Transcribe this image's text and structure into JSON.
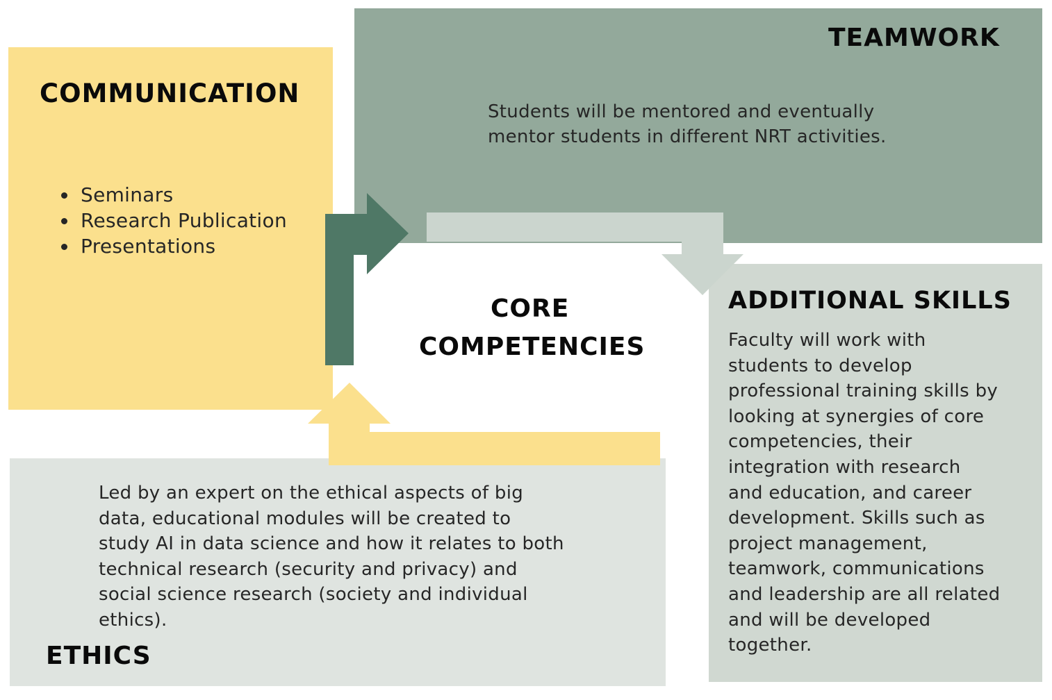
{
  "colors": {
    "communication": "#fbe08d",
    "teamwork": "#93a99b",
    "additional_skills": "#d0d8d1",
    "ethics": "#dfe4e0",
    "arrow_dark": "#4f7866",
    "arrow_light": "#cbd5ce",
    "arrow_yellow": "#fbe08d"
  },
  "center": {
    "line1": "CORE",
    "line2": "COMPETENCIES"
  },
  "communication": {
    "title": "COMMUNICATION",
    "items": [
      "Seminars",
      "Research Publication",
      "Presentations"
    ]
  },
  "teamwork": {
    "title": "TEAMWORK",
    "line1": "Students will be mentored and eventually",
    "line2": "mentor students in different NRT activities."
  },
  "additional_skills": {
    "title": "ADDITIONAL SKILLS",
    "lines": [
      "Faculty will work with",
      "students to develop",
      "professional training skills by",
      "looking at synergies of core",
      "competencies, their",
      "integration with research",
      "and education, and career",
      "development. Skills such as",
      "project management,",
      "teamwork, communications",
      "and leadership are all related",
      "and will be developed",
      "together."
    ]
  },
  "ethics": {
    "title": "ETHICS",
    "lines": [
      "Led by an expert on the ethical aspects of big",
      "data, educational modules will be created to",
      "study AI in data science and how it relates to both",
      "technical research (security and privacy) and",
      "social science research (society and individual",
      "ethics)."
    ]
  }
}
